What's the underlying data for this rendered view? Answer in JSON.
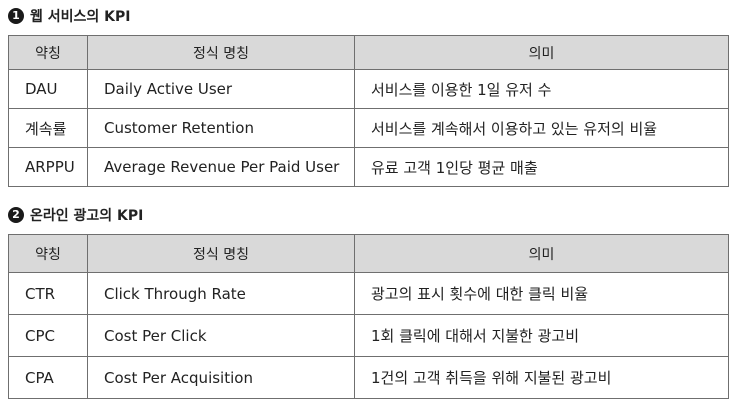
{
  "sections": [
    {
      "number": "1",
      "title": "웹 서비스의 KPI",
      "headers": [
        "약칭",
        "정식 명칭",
        "의미"
      ],
      "rows": [
        {
          "abbr": "DAU",
          "name": "Daily Active User",
          "meaning": "서비스를 이용한 1일 유저 수"
        },
        {
          "abbr": "계속률",
          "name": "Customer Retention",
          "meaning": "서비스를 계속해서 이용하고 있는 유저의 비율"
        },
        {
          "abbr": "ARPPU",
          "name": "Average Revenue Per Paid User",
          "meaning": "유료 고객 1인당 평균 매출"
        }
      ]
    },
    {
      "number": "2",
      "title": "온라인 광고의 KPI",
      "headers": [
        "약칭",
        "정식 명칭",
        "의미"
      ],
      "rows": [
        {
          "abbr": "CTR",
          "name": "Click Through Rate",
          "meaning": "광고의 표시 횟수에 대한 클릭 비율"
        },
        {
          "abbr": "CPC",
          "name": "Cost Per Click",
          "meaning": "1회 클릭에 대해서 지불한 광고비"
        },
        {
          "abbr": "CPA",
          "name": "Cost Per Acquisition",
          "meaning": "1건의 고객 취득을 위해 지불된 광고비"
        }
      ]
    }
  ]
}
